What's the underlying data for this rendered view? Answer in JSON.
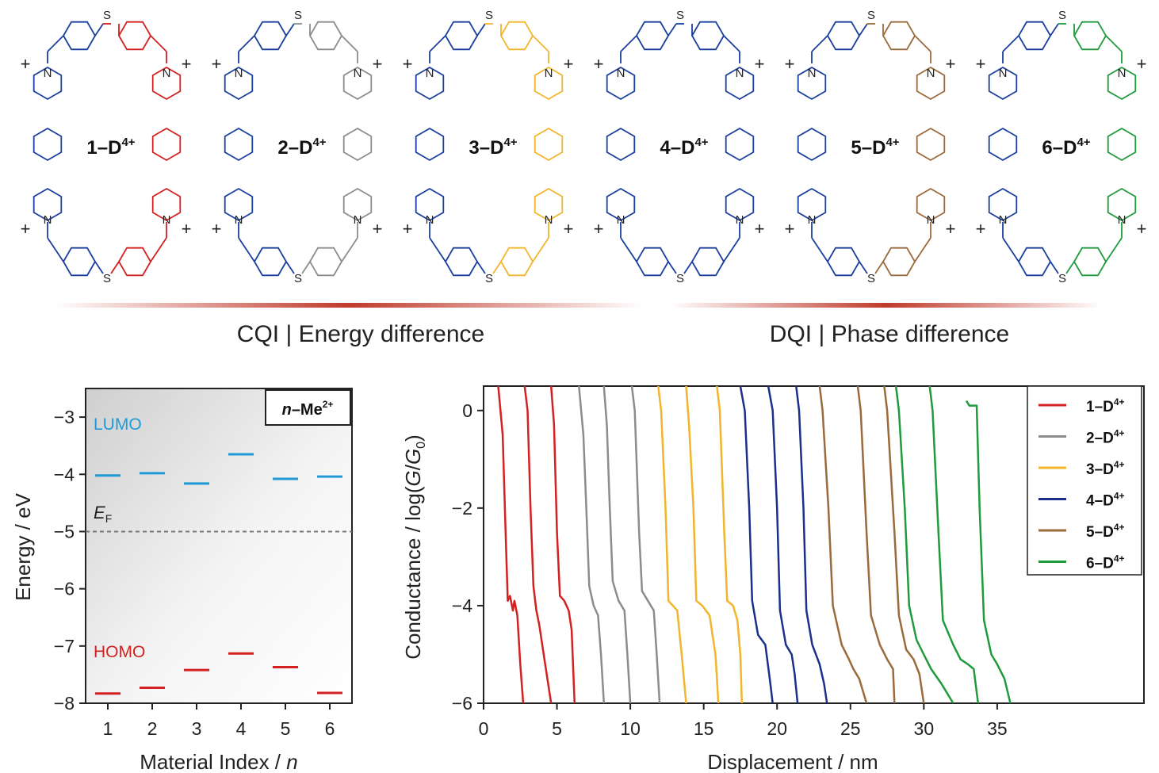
{
  "molecules": [
    {
      "index": "1",
      "label": "1–D",
      "charge": "4+",
      "color": "#d32020"
    },
    {
      "index": "2",
      "label": "2–D",
      "charge": "4+",
      "color": "#8c8c8c"
    },
    {
      "index": "3",
      "label": "3–D",
      "charge": "4+",
      "color": "#f2b52c"
    },
    {
      "index": "4",
      "label": "4–D",
      "charge": "4+",
      "color": "#1c2f8a"
    },
    {
      "index": "5",
      "label": "5–D",
      "charge": "4+",
      "color": "#9b6a3a"
    },
    {
      "index": "6",
      "label": "6–D",
      "charge": "4+",
      "color": "#1f9a3c"
    }
  ],
  "scheme_colors": {
    "frame": "#1a3f9e"
  },
  "atoms": {
    "sulfur": "S",
    "nitrogen": "N",
    "plus": "+"
  },
  "captions": {
    "left": "CQI | Energy difference",
    "right": "DQI | Phase difference"
  },
  "chart_data": [
    {
      "type": "scatter",
      "title": "",
      "legend_box": {
        "prefix": "n",
        "text": "–Me",
        "sup": "2+"
      },
      "xlabel": "Material Index / ",
      "xlabel_italic": "n",
      "ylabel": "Energy / eV",
      "xlim": [
        0.5,
        6.5
      ],
      "ylim": [
        -8,
        -2.5
      ],
      "xticks": [
        1,
        2,
        3,
        4,
        5,
        6
      ],
      "yticks": [
        -3,
        -4,
        -5,
        -6,
        -7,
        -8
      ],
      "ytick_labels": [
        "−3",
        "−4",
        "−5",
        "−6",
        "−7",
        "−8"
      ],
      "fermi_level": -5.0,
      "fermi_label": {
        "main": "E",
        "sub": "F"
      },
      "series": [
        {
          "name": "LUMO",
          "color": "#1f9ad6",
          "x": [
            1,
            2,
            3,
            4,
            5,
            6
          ],
          "values": [
            -4.02,
            -3.98,
            -4.16,
            -3.65,
            -4.08,
            -4.04
          ]
        },
        {
          "name": "HOMO",
          "color": "#d32020",
          "x": [
            1,
            2,
            3,
            4,
            5,
            6
          ],
          "values": [
            -7.83,
            -7.73,
            -7.42,
            -7.13,
            -7.37,
            -7.82
          ]
        }
      ]
    },
    {
      "type": "line",
      "title": "",
      "xlabel": "Displacement / nm",
      "ylabel_parts": [
        "Conductance / log(",
        "G",
        "/",
        "G",
        "0",
        ")"
      ],
      "xlim": [
        0,
        45
      ],
      "ylim": [
        -6,
        0.5
      ],
      "xticks": [
        0,
        5,
        10,
        15,
        20,
        25,
        30,
        35
      ],
      "yticks": [
        0,
        -2,
        -4,
        -6
      ],
      "ytick_labels": [
        "0",
        "−2",
        "−4",
        "−6"
      ],
      "legend_position": "top-right",
      "series": [
        {
          "name": "1–D4+",
          "label": "1–D",
          "sup": "4+",
          "color": "#d32020",
          "traces": [
            [
              [
                1.0,
                0.5
              ],
              [
                1.3,
                -0.5
              ],
              [
                1.5,
                -2.5
              ],
              [
                1.65,
                -3.9
              ],
              [
                1.8,
                -3.8
              ],
              [
                2.0,
                -4.1
              ],
              [
                2.1,
                -3.9
              ],
              [
                2.3,
                -4.2
              ],
              [
                2.5,
                -5.2
              ],
              [
                2.7,
                -6
              ]
            ],
            [
              [
                2.8,
                0.5
              ],
              [
                3.0,
                0
              ],
              [
                3.2,
                -2.0
              ],
              [
                3.4,
                -3.6
              ],
              [
                3.6,
                -4.1
              ],
              [
                3.8,
                -4.4
              ],
              [
                4.2,
                -5.2
              ],
              [
                4.6,
                -6
              ]
            ],
            [
              [
                4.6,
                0.5
              ],
              [
                4.8,
                -0.3
              ],
              [
                5.0,
                -2.5
              ],
              [
                5.2,
                -3.8
              ],
              [
                5.5,
                -3.9
              ],
              [
                5.8,
                -4.1
              ],
              [
                6.0,
                -4.5
              ],
              [
                6.2,
                -6
              ]
            ]
          ]
        },
        {
          "name": "2–D4+",
          "label": "2–D",
          "sup": "4+",
          "color": "#8c8c8c",
          "traces": [
            [
              [
                6.5,
                0.5
              ],
              [
                6.8,
                -0.5
              ],
              [
                7.0,
                -2.0
              ],
              [
                7.2,
                -3.6
              ],
              [
                7.5,
                -4.0
              ],
              [
                7.8,
                -4.2
              ],
              [
                8.0,
                -5.0
              ],
              [
                8.2,
                -6
              ]
            ],
            [
              [
                8.2,
                0.5
              ],
              [
                8.4,
                -0.3
              ],
              [
                8.6,
                -2.0
              ],
              [
                8.8,
                -3.5
              ],
              [
                9.2,
                -3.9
              ],
              [
                9.6,
                -4.1
              ],
              [
                9.8,
                -5.0
              ],
              [
                10.0,
                -6
              ]
            ],
            [
              [
                10.1,
                0.5
              ],
              [
                10.3,
                0
              ],
              [
                10.6,
                -2.5
              ],
              [
                10.8,
                -3.7
              ],
              [
                11.2,
                -3.9
              ],
              [
                11.6,
                -4.1
              ],
              [
                11.8,
                -5.0
              ],
              [
                12.0,
                -6
              ]
            ]
          ]
        },
        {
          "name": "3–D4+",
          "label": "3–D",
          "sup": "4+",
          "color": "#f2b52c",
          "traces": [
            [
              [
                11.9,
                0.5
              ],
              [
                12.1,
                0
              ],
              [
                12.4,
                -2.0
              ],
              [
                12.6,
                -3.9
              ],
              [
                12.9,
                -4.0
              ],
              [
                13.2,
                -4.1
              ],
              [
                13.5,
                -5.0
              ],
              [
                13.8,
                -6
              ]
            ],
            [
              [
                13.8,
                0.5
              ],
              [
                14.0,
                -0.3
              ],
              [
                14.3,
                -2.0
              ],
              [
                14.5,
                -3.9
              ],
              [
                14.9,
                -4.0
              ],
              [
                15.4,
                -4.2
              ],
              [
                15.8,
                -5.0
              ],
              [
                16.0,
                -6
              ]
            ],
            [
              [
                15.9,
                0.5
              ],
              [
                16.1,
                0
              ],
              [
                16.4,
                -2.5
              ],
              [
                16.6,
                -3.9
              ],
              [
                17.0,
                -4.0
              ],
              [
                17.3,
                -4.3
              ],
              [
                17.5,
                -5.0
              ],
              [
                17.6,
                -6
              ]
            ]
          ]
        },
        {
          "name": "4–D4+",
          "label": "4–D",
          "sup": "4+",
          "color": "#1c2f8a",
          "traces": [
            [
              [
                17.5,
                0.5
              ],
              [
                17.8,
                0
              ],
              [
                18.1,
                -2.0
              ],
              [
                18.3,
                -3.9
              ],
              [
                18.7,
                -4.6
              ],
              [
                19.2,
                -4.8
              ],
              [
                19.5,
                -5.5
              ],
              [
                19.7,
                -6
              ]
            ],
            [
              [
                19.4,
                0.5
              ],
              [
                19.7,
                0
              ],
              [
                20.0,
                -2.0
              ],
              [
                20.2,
                -4.1
              ],
              [
                20.6,
                -4.8
              ],
              [
                21.0,
                -5.0
              ],
              [
                21.2,
                -5.4
              ],
              [
                21.4,
                -6
              ]
            ],
            [
              [
                21.3,
                0.5
              ],
              [
                21.5,
                0
              ],
              [
                21.8,
                -2.0
              ],
              [
                22.0,
                -4.1
              ],
              [
                22.4,
                -4.8
              ],
              [
                22.9,
                -5.2
              ],
              [
                23.2,
                -5.6
              ],
              [
                23.4,
                -6
              ]
            ]
          ]
        },
        {
          "name": "5–D4+",
          "label": "5–D",
          "sup": "4+",
          "color": "#9b6a3a",
          "traces": [
            [
              [
                22.9,
                0.5
              ],
              [
                23.1,
                0
              ],
              [
                23.5,
                -2.0
              ],
              [
                23.8,
                -4.0
              ],
              [
                24.4,
                -4.8
              ],
              [
                24.9,
                -5.1
              ],
              [
                25.2,
                -5.3
              ],
              [
                25.6,
                -5.5
              ],
              [
                26.1,
                -6
              ]
            ],
            [
              [
                25.5,
                0.5
              ],
              [
                25.7,
                0
              ],
              [
                26.1,
                -2.5
              ],
              [
                26.4,
                -4.2
              ],
              [
                27.0,
                -4.8
              ],
              [
                27.5,
                -5.1
              ],
              [
                27.9,
                -5.3
              ],
              [
                28.0,
                -6
              ]
            ],
            [
              [
                27.3,
                0.5
              ],
              [
                27.5,
                0
              ],
              [
                28.0,
                -2.5
              ],
              [
                28.3,
                -4.2
              ],
              [
                28.8,
                -4.9
              ],
              [
                29.3,
                -5.1
              ],
              [
                29.7,
                -5.4
              ],
              [
                30.0,
                -6
              ]
            ]
          ]
        },
        {
          "name": "6–D4+",
          "label": "6–D",
          "sup": "4+",
          "color": "#1f9a3c",
          "traces": [
            [
              [
                28.1,
                0.5
              ],
              [
                28.3,
                0
              ],
              [
                28.7,
                -2.0
              ],
              [
                29.0,
                -4.0
              ],
              [
                29.5,
                -4.7
              ],
              [
                30.0,
                -5.0
              ],
              [
                30.5,
                -5.3
              ],
              [
                31.2,
                -5.6
              ],
              [
                32.0,
                -6
              ]
            ],
            [
              [
                30.4,
                0.5
              ],
              [
                30.6,
                0
              ],
              [
                31.0,
                -2.5
              ],
              [
                31.3,
                -4.3
              ],
              [
                32.0,
                -4.8
              ],
              [
                32.5,
                -5.1
              ],
              [
                33.0,
                -5.2
              ],
              [
                33.4,
                -5.3
              ],
              [
                33.7,
                -6
              ]
            ],
            [
              [
                32.9,
                0.2
              ],
              [
                33.1,
                0.1
              ],
              [
                33.6,
                0.1
              ],
              [
                33.8,
                -2.0
              ],
              [
                34.1,
                -4.3
              ],
              [
                34.6,
                -5.0
              ],
              [
                35.0,
                -5.2
              ],
              [
                35.5,
                -5.5
              ],
              [
                35.9,
                -6
              ]
            ]
          ]
        }
      ]
    }
  ]
}
